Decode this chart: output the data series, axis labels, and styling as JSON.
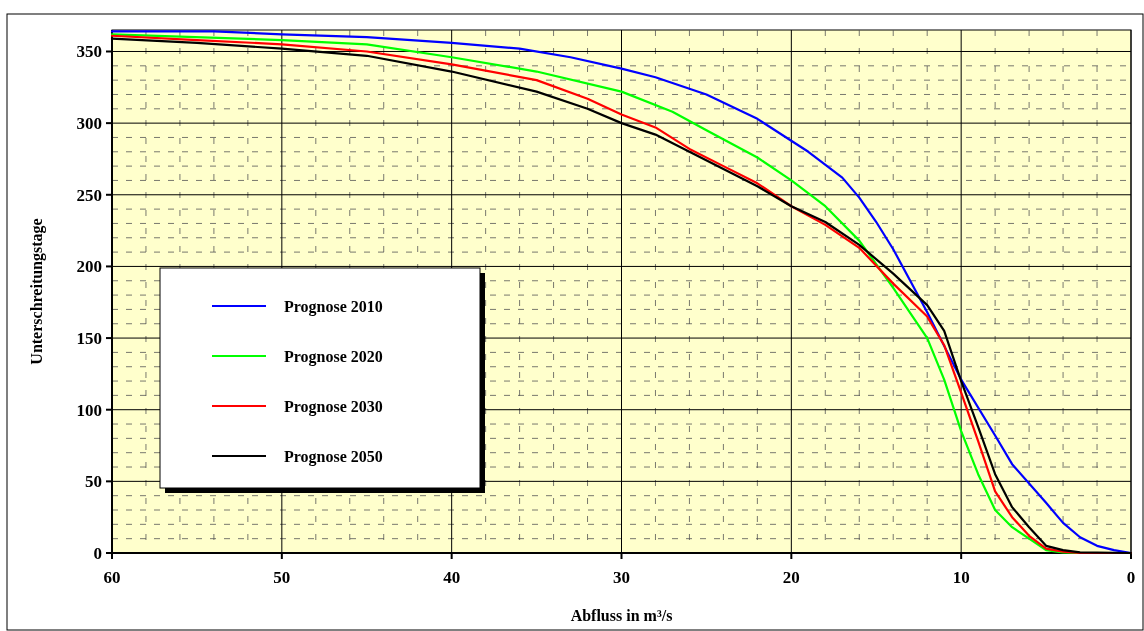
{
  "chart_data": {
    "type": "line",
    "xlabel": "Abfluss in m³/s",
    "ylabel": "Unterschreitungstage",
    "xlim": [
      60,
      0
    ],
    "xticks": [
      60,
      50,
      40,
      30,
      20,
      10,
      0
    ],
    "ylim": [
      0,
      365
    ],
    "yticks": [
      0,
      50,
      100,
      150,
      200,
      250,
      300,
      350
    ],
    "grid": true,
    "legend": "left",
    "line_style": "solid",
    "series": [
      {
        "name": "Prognose 2010",
        "color": "#0000ff",
        "x": [
          60,
          54,
          50,
          45,
          40,
          36,
          33,
          30,
          28,
          25,
          22,
          19,
          17,
          16,
          15,
          14,
          12,
          10,
          8,
          7,
          5,
          4,
          3,
          2,
          1,
          0
        ],
        "values": [
          364,
          364,
          362,
          360,
          356,
          352,
          346,
          338,
          332,
          320,
          303,
          280,
          262,
          248,
          231,
          212,
          168,
          121,
          82,
          62,
          35,
          21,
          11,
          5,
          2,
          0
        ]
      },
      {
        "name": "Prognose 2020",
        "color": "#00ff00",
        "x": [
          60,
          50,
          45,
          40,
          35,
          30,
          27,
          25,
          22,
          20,
          18,
          16,
          14,
          12,
          11,
          10,
          9,
          8,
          7,
          6,
          5,
          4,
          3,
          0
        ],
        "values": [
          362,
          358,
          355,
          346,
          336,
          322,
          308,
          295,
          276,
          260,
          242,
          218,
          185,
          150,
          121,
          85,
          55,
          30,
          18,
          10,
          2,
          0.5,
          0,
          0
        ]
      },
      {
        "name": "Prognose 2030",
        "color": "#ff0000",
        "x": [
          60,
          55,
          50,
          45,
          40,
          35,
          32,
          30,
          28,
          26,
          24,
          22,
          20,
          18,
          16,
          14,
          12,
          11,
          10,
          9,
          8,
          7,
          6,
          5,
          4,
          3,
          0
        ],
        "values": [
          361,
          358,
          355,
          350,
          341,
          330,
          317,
          306,
          297,
          282,
          270,
          258,
          242,
          229,
          213,
          188,
          165,
          145,
          112,
          78,
          43,
          25,
          12,
          3,
          1,
          0,
          0
        ]
      },
      {
        "name": "Prognose 2050",
        "color": "#000000",
        "x": [
          60,
          55,
          50,
          45,
          40,
          35,
          32,
          30,
          28,
          26,
          24,
          22,
          20,
          18,
          16,
          14,
          12,
          11,
          10,
          9,
          8,
          7,
          6,
          5,
          4,
          3,
          0
        ],
        "values": [
          359,
          356,
          352,
          347,
          336,
          322,
          310,
          300,
          292,
          280,
          268,
          256,
          242,
          231,
          215,
          195,
          173,
          155,
          120,
          88,
          55,
          32,
          18,
          5,
          2,
          0.5,
          0
        ]
      }
    ]
  }
}
